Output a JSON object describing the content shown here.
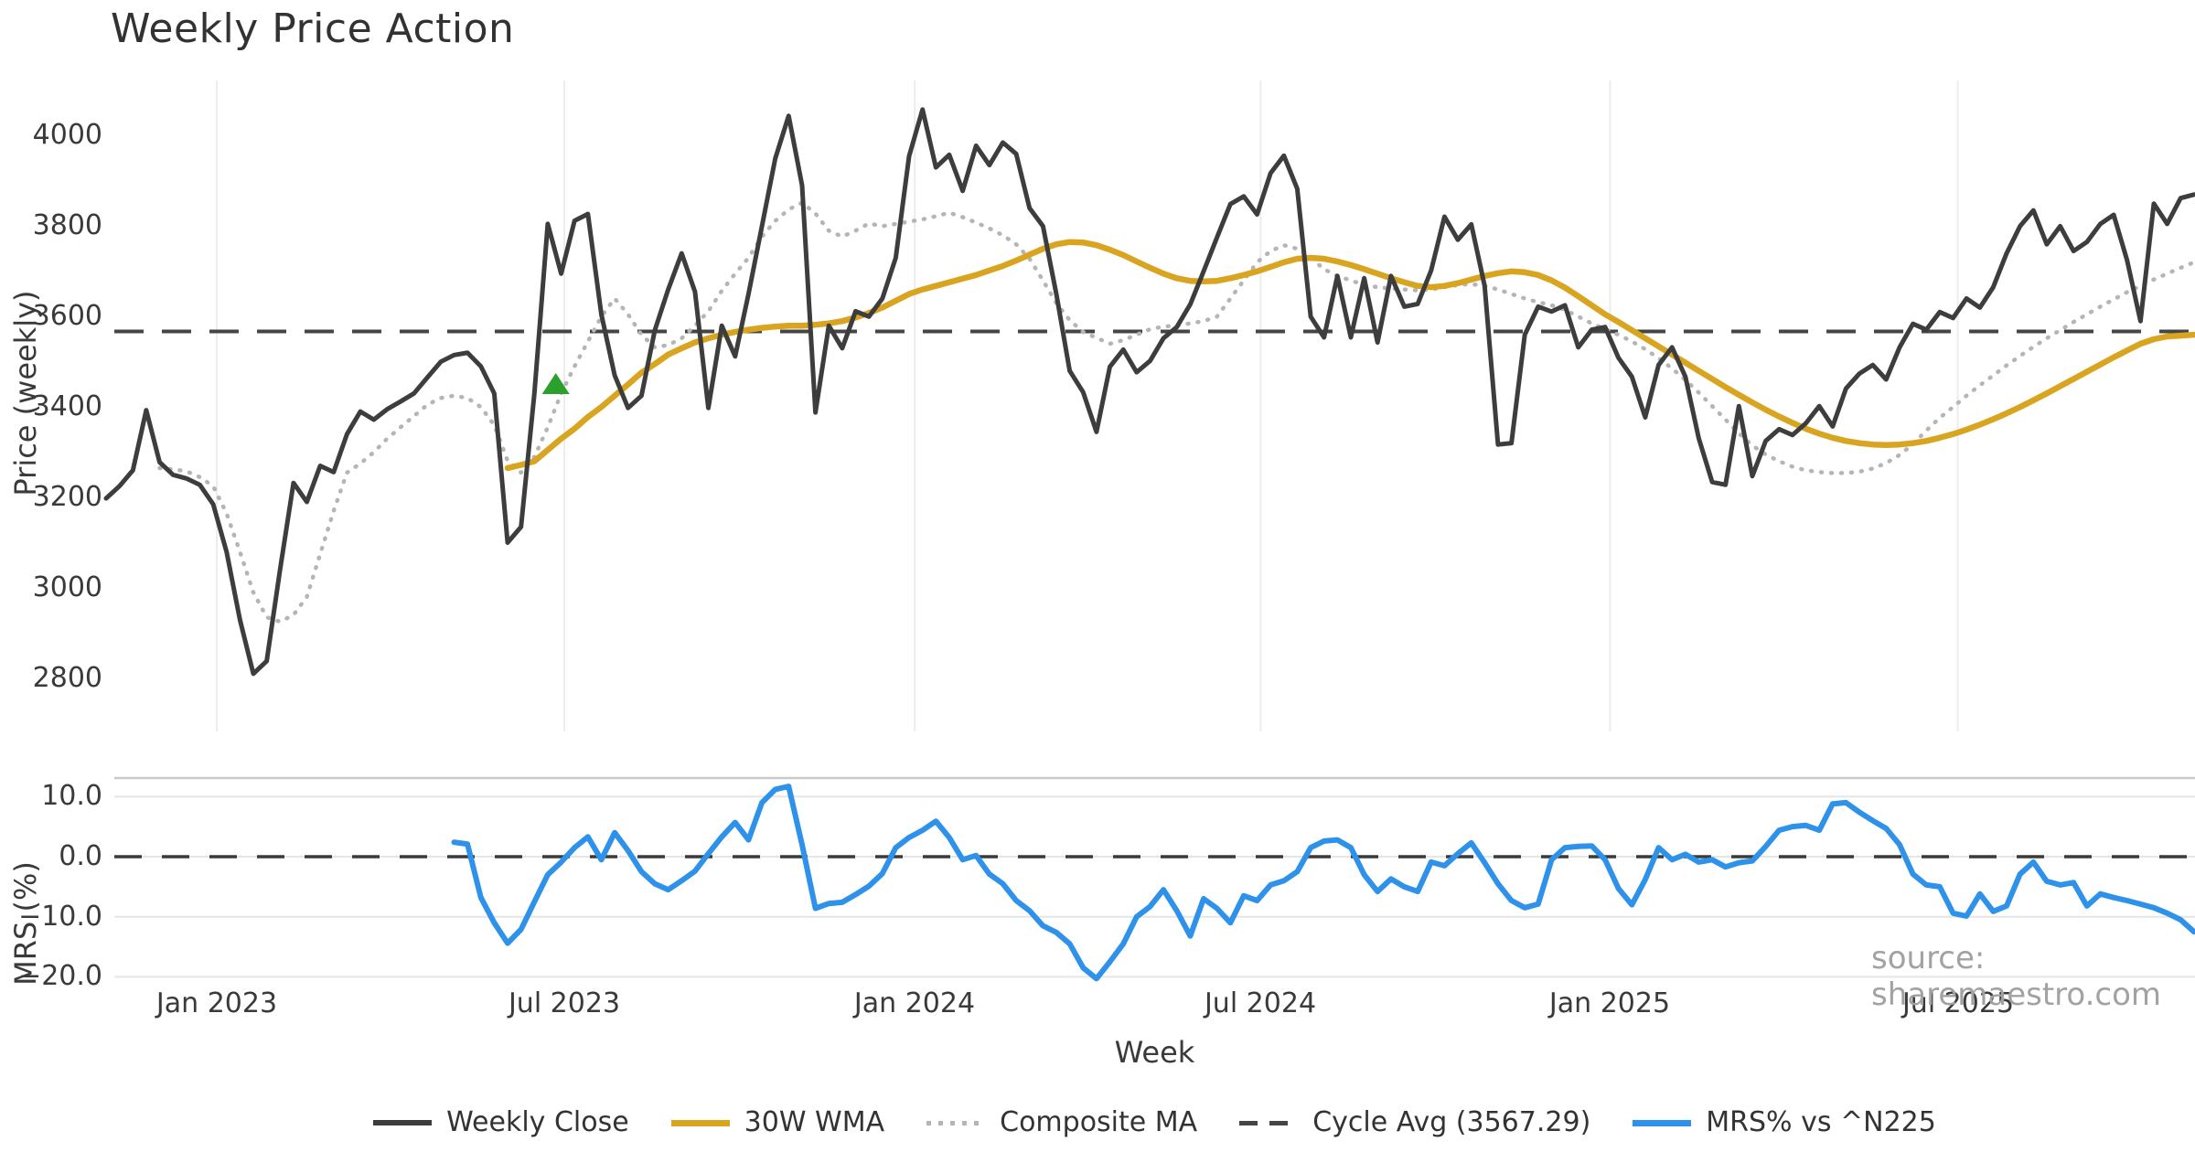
{
  "title": "Weekly Price Action",
  "axes": {
    "price_ylabel": "Price (weekly)",
    "mrs_ylabel": "MRS (%)",
    "xlabel": "Week",
    "price_tick_labels": [
      "4000",
      "3800",
      "3600",
      "3400",
      "3200",
      "3000",
      "2800"
    ],
    "mrs_tick_labels": [
      "10.0",
      "0.0",
      "−10.0",
      "−20.0"
    ],
    "x_tick_labels": [
      "Jan 2023",
      "Jul 2023",
      "Jan 2024",
      "Jul 2024",
      "Jan 2025",
      "Jul 2025"
    ]
  },
  "legend": {
    "weekly_close": "Weekly Close",
    "wma_30w": "30W WMA",
    "composite_ma": "Composite MA",
    "cycle_avg": "Cycle Avg (3567.29)",
    "mrs_n225": "MRS% vs ^N225"
  },
  "source_note": "source: sharemaestro.com",
  "colors": {
    "weekly_close": "#3d3d3d",
    "wma_30w": "#d9a521",
    "composite_ma": "#b5b5b5",
    "cycle_avg": "#454545",
    "mrs_line": "#2e91ea",
    "marker_green": "#2ca02c",
    "gridline": "#ededed",
    "panel_spine": "#c9c9c9",
    "mrs_gridline": "#e6e6e6"
  },
  "chart_data": {
    "type": "line",
    "x_unit": "week_index",
    "x_range": [
      0,
      156
    ],
    "x_ticks": {
      "labels": [
        "Jan 2023",
        "Jul 2023",
        "Jan 2024",
        "Jul 2024",
        "Jan 2025",
        "Jul 2025"
      ],
      "week_indices": [
        8.27,
        34.24,
        60.42,
        86.26,
        112.37,
        138.35
      ]
    },
    "price_panel": {
      "ylabel": "Price (weekly)",
      "ylim": [
        2700,
        4180
      ],
      "yticks": [
        4000,
        3800,
        3600,
        3400,
        3200,
        3000,
        2800
      ],
      "cycle_avg_value": 3567.29,
      "grid": "vertical-only",
      "marker_up_triangle": {
        "week_index": 33.6,
        "value": 3451
      },
      "series": [
        {
          "name": "Weekly Close",
          "start_index": 0,
          "values": [
            3198,
            3225,
            3260,
            3393,
            3278,
            3250,
            3242,
            3228,
            3185,
            3080,
            2930,
            2810,
            2838,
            3040,
            3232,
            3190,
            3270,
            3256,
            3340,
            3390,
            3372,
            3395,
            3412,
            3430,
            3465,
            3500,
            3515,
            3520,
            3490,
            3430,
            3100,
            3135,
            3430,
            3805,
            3695,
            3812,
            3827,
            3605,
            3470,
            3398,
            3425,
            3570,
            3660,
            3740,
            3655,
            3398,
            3580,
            3512,
            3650,
            3800,
            3950,
            4044,
            3890,
            3388,
            3580,
            3530,
            3612,
            3600,
            3640,
            3730,
            3955,
            4058,
            3930,
            3958,
            3878,
            3978,
            3935,
            3985,
            3960,
            3840,
            3800,
            3650,
            3480,
            3433,
            3345,
            3489,
            3527,
            3477,
            3502,
            3552,
            3577,
            3627,
            3700,
            3775,
            3849,
            3866,
            3826,
            3917,
            3956,
            3883,
            3600,
            3554,
            3690,
            3554,
            3685,
            3543,
            3690,
            3622,
            3628,
            3702,
            3821,
            3770,
            3804,
            3668,
            3317,
            3320,
            3560,
            3622,
            3611,
            3625,
            3532,
            3571,
            3577,
            3509,
            3467,
            3377,
            3493,
            3532,
            3467,
            3331,
            3234,
            3228,
            3402,
            3247,
            3325,
            3351,
            3338,
            3364,
            3402,
            3357,
            3441,
            3474,
            3493,
            3461,
            3532,
            3584,
            3571,
            3610,
            3597,
            3640,
            3620,
            3665,
            3740,
            3800,
            3835,
            3760,
            3800,
            3745,
            3765,
            3805,
            3825,
            3725,
            3590,
            3850,
            3805,
            3862,
            3870
          ]
        },
        {
          "name": "30W WMA",
          "start_index": 30,
          "values": [
            3265,
            3272,
            3280,
            3305,
            3330,
            3352,
            3378,
            3400,
            3425,
            3450,
            3476,
            3495,
            3516,
            3530,
            3543,
            3552,
            3560,
            3566,
            3571,
            3575,
            3578,
            3580,
            3580,
            3582,
            3585,
            3590,
            3598,
            3608,
            3620,
            3635,
            3650,
            3660,
            3668,
            3676,
            3684,
            3692,
            3702,
            3712,
            3724,
            3737,
            3750,
            3760,
            3765,
            3764,
            3758,
            3748,
            3736,
            3722,
            3708,
            3695,
            3685,
            3679,
            3678,
            3679,
            3685,
            3692,
            3700,
            3710,
            3720,
            3728,
            3730,
            3728,
            3722,
            3714,
            3705,
            3695,
            3685,
            3676,
            3668,
            3665,
            3668,
            3674,
            3682,
            3690,
            3696,
            3700,
            3698,
            3692,
            3680,
            3664,
            3645,
            3625,
            3605,
            3588,
            3570,
            3552,
            3534,
            3516,
            3498,
            3480,
            3462,
            3444,
            3427,
            3410,
            3394,
            3379,
            3365,
            3352,
            3341,
            3332,
            3325,
            3320,
            3317,
            3316,
            3317,
            3320,
            3325,
            3332,
            3340,
            3350,
            3361,
            3373,
            3386,
            3400,
            3415,
            3430,
            3446,
            3462,
            3478,
            3494,
            3510,
            3525,
            3540,
            3550,
            3556,
            3558,
            3560
          ]
        },
        {
          "name": "Composite MA",
          "start_index": 4,
          "values": [
            3265,
            3262,
            3258,
            3245,
            3225,
            3165,
            3080,
            2990,
            2935,
            2925,
            2940,
            2980,
            3075,
            3170,
            3255,
            3275,
            3300,
            3330,
            3355,
            3380,
            3405,
            3420,
            3425,
            3420,
            3400,
            3360,
            3281,
            3255,
            3290,
            3355,
            3430,
            3490,
            3545,
            3600,
            3640,
            3605,
            3560,
            3532,
            3537,
            3552,
            3580,
            3612,
            3657,
            3695,
            3730,
            3777,
            3812,
            3837,
            3852,
            3828,
            3790,
            3777,
            3790,
            3806,
            3800,
            3805,
            3810,
            3815,
            3822,
            3830,
            3820,
            3808,
            3795,
            3780,
            3760,
            3728,
            3680,
            3630,
            3592,
            3566,
            3553,
            3540,
            3548,
            3560,
            3572,
            3578,
            3580,
            3585,
            3590,
            3600,
            3640,
            3680,
            3720,
            3745,
            3758,
            3750,
            3730,
            3705,
            3690,
            3680,
            3670,
            3665,
            3662,
            3660,
            3658,
            3660,
            3665,
            3670,
            3672,
            3668,
            3660,
            3650,
            3640,
            3632,
            3625,
            3615,
            3600,
            3585,
            3572,
            3560,
            3545,
            3528,
            3508,
            3485,
            3460,
            3432,
            3402,
            3372,
            3342,
            3315,
            3295,
            3280,
            3268,
            3260,
            3256,
            3254,
            3254,
            3257,
            3264,
            3276,
            3294,
            3318,
            3348,
            3376,
            3400,
            3425,
            3448,
            3470,
            3492,
            3513,
            3533,
            3552,
            3570,
            3588,
            3605,
            3622,
            3638,
            3654,
            3668,
            3682,
            3695,
            3708,
            3720
          ]
        }
      ]
    },
    "mrs_panel": {
      "ylabel": "MRS (%)",
      "ylim": [
        -23,
        13
      ],
      "yticks": [
        10.0,
        0.0,
        -10.0,
        -20.0
      ],
      "zero_line": 0.0,
      "grid": "horizontal-only",
      "series": [
        {
          "name": "MRS% vs ^N225",
          "start_index": 26,
          "values": [
            2.4,
            2.1,
            -6.8,
            -11.0,
            -14.4,
            -12.1,
            -7.5,
            -3.0,
            -0.9,
            1.5,
            3.3,
            -0.5,
            4.0,
            1.0,
            -2.5,
            -4.5,
            -5.5,
            -4.0,
            -2.4,
            0.5,
            3.3,
            5.7,
            2.8,
            9.0,
            11.2,
            11.7,
            2.0,
            -8.6,
            -7.8,
            -7.6,
            -6.3,
            -4.9,
            -2.8,
            1.5,
            3.2,
            4.4,
            5.9,
            3.2,
            -0.5,
            0.2,
            -2.9,
            -4.5,
            -7.3,
            -9.0,
            -11.5,
            -12.6,
            -14.5,
            -18.5,
            -20.3,
            -17.5,
            -14.5,
            -10.0,
            -8.3,
            -5.5,
            -9.0,
            -13.2,
            -7.0,
            -8.6,
            -11.0,
            -6.5,
            -7.3,
            -4.7,
            -4.0,
            -2.5,
            1.5,
            2.6,
            2.8,
            1.5,
            -3.0,
            -5.8,
            -3.7,
            -5.0,
            -5.8,
            -0.9,
            -1.5,
            0.5,
            2.3,
            -1.0,
            -4.5,
            -7.3,
            -8.5,
            -7.9,
            -0.5,
            1.5,
            1.7,
            1.8,
            -0.5,
            -5.3,
            -8.0,
            -3.8,
            1.5,
            -0.5,
            0.4,
            -0.9,
            -0.5,
            -1.7,
            -1.0,
            -0.7,
            1.7,
            4.4,
            5.0,
            5.2,
            4.4,
            8.8,
            9.0,
            7.4,
            6.0,
            4.7,
            2.0,
            -2.9,
            -4.7,
            -5.0,
            -9.4,
            -9.9,
            -6.2,
            -9.1,
            -8.2,
            -2.9,
            -0.9,
            -4.1,
            -4.7,
            -4.3,
            -8.2,
            -6.2,
            -6.8,
            -7.3,
            -7.9,
            -8.5,
            -9.4,
            -10.5,
            -12.5
          ]
        }
      ]
    }
  }
}
